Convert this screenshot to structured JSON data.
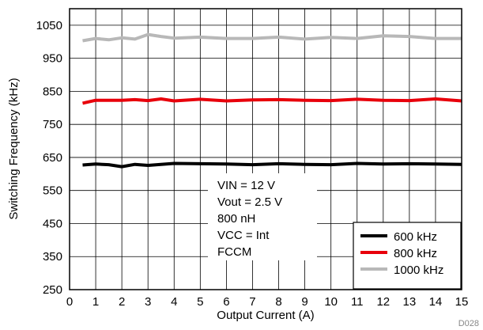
{
  "chart_data": {
    "type": "line",
    "title": "",
    "xlabel": "Output Current (A)",
    "ylabel": "Switching Frequency (kHz)",
    "xlim": [
      0,
      15
    ],
    "ylim": [
      250,
      1100
    ],
    "xticks": [
      0,
      1,
      2,
      3,
      4,
      5,
      6,
      7,
      8,
      9,
      10,
      11,
      12,
      13,
      14,
      15
    ],
    "yticks": [
      250,
      350,
      450,
      550,
      650,
      750,
      850,
      950,
      1050
    ],
    "grid": true,
    "legend_position": "bottom-right",
    "x": [
      0.5,
      1,
      1.5,
      2,
      2.5,
      3,
      3.5,
      4,
      5,
      6,
      7,
      8,
      9,
      10,
      11,
      12,
      13,
      14,
      15
    ],
    "series": [
      {
        "name": "600 kHz",
        "color": "#000000",
        "values": [
          627,
          630,
          628,
          622,
          629,
          626,
          629,
          632,
          631,
          630,
          628,
          631,
          629,
          628,
          632,
          630,
          631,
          630,
          629
        ]
      },
      {
        "name": "800 kHz",
        "color": "#e8000b",
        "values": [
          814,
          823,
          823,
          823,
          825,
          822,
          827,
          821,
          826,
          821,
          824,
          825,
          823,
          822,
          826,
          823,
          822,
          827,
          821
        ]
      },
      {
        "name": "1000 kHz",
        "color": "#b8b8b8",
        "values": [
          1003,
          1010,
          1006,
          1012,
          1008,
          1022,
          1016,
          1011,
          1014,
          1010,
          1010,
          1014,
          1008,
          1013,
          1010,
          1018,
          1016,
          1010,
          1010
        ]
      }
    ],
    "annotation": [
      "VIN = 12 V",
      "Vout = 2.5 V",
      "800 nH",
      "VCC = Int",
      "FCCM"
    ]
  },
  "figure_id": "D028"
}
